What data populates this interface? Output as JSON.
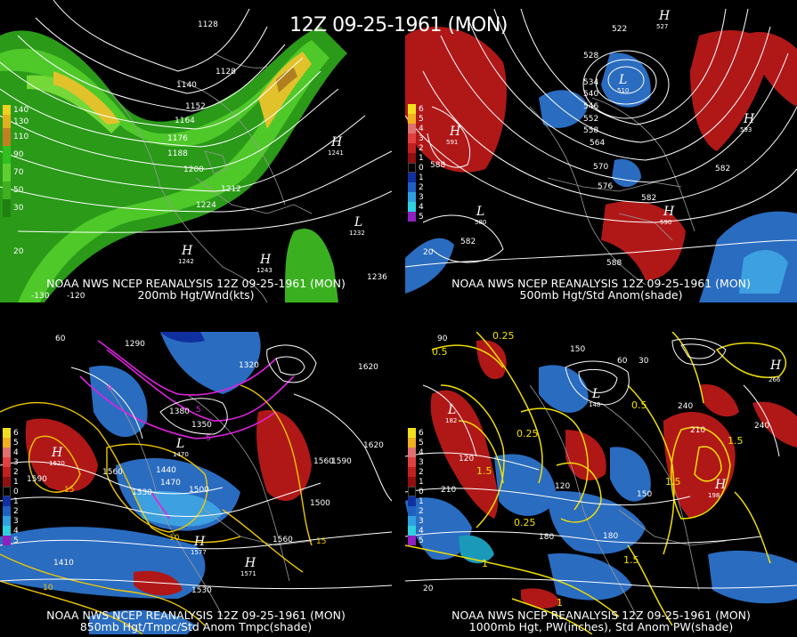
{
  "title": "12Z 09-25-1961 (MON)",
  "panels": [
    {
      "id": "p1",
      "caption_line1": "NOAA NWS NCEP REANALYSIS 12Z 09-25-1961 (MON)",
      "caption_line2": "200mb Hgt/Wnd(kts)",
      "legend": [
        {
          "label": "140",
          "color": "#f0d020"
        },
        {
          "label": "130",
          "color": "#e0b020"
        },
        {
          "label": "110",
          "color": "#c08020"
        },
        {
          "label": "90",
          "color": "#30c020"
        },
        {
          "label": "70",
          "color": "#60d030"
        },
        {
          "label": "50",
          "color": "#40b020"
        },
        {
          "label": "30",
          "color": "#208010"
        }
      ],
      "contours": [
        "1128",
        "1128",
        "1140",
        "1152",
        "1164",
        "1176",
        "1188",
        "1200",
        "1212",
        "1224",
        "1232",
        "1236",
        "1241",
        "1242",
        "1243"
      ],
      "centers": [
        {
          "letter": "H",
          "value": "1241"
        },
        {
          "letter": "L",
          "value": "1232"
        },
        {
          "letter": "H",
          "value": "1242"
        },
        {
          "letter": "H",
          "value": "1243"
        }
      ],
      "lon_labels": [
        "-130",
        "-120",
        "20"
      ]
    },
    {
      "id": "p2",
      "caption_line1": "NOAA NWS NCEP REANALYSIS 12Z 09-25-1961 (MON)",
      "caption_line2": "500mb Hgt/Std Anom(shade)",
      "legend": [
        {
          "label": "6",
          "color": "#f0e020"
        },
        {
          "label": "5",
          "color": "#f0b020"
        },
        {
          "label": "4",
          "color": "#e07070"
        },
        {
          "label": "3",
          "color": "#e04040"
        },
        {
          "label": "2",
          "color": "#c02020"
        },
        {
          "label": "1",
          "color": "#901010"
        },
        {
          "label": "0",
          "color": "#000000"
        },
        {
          "label": "1",
          "color": "#1030a0"
        },
        {
          "label": "2",
          "color": "#2060c0"
        },
        {
          "label": "3",
          "color": "#30a0e0"
        },
        {
          "label": "4",
          "color": "#30d0e0"
        },
        {
          "label": "5",
          "color": "#9020c0"
        }
      ],
      "contours": [
        "522",
        "528",
        "528",
        "534",
        "540",
        "546",
        "552",
        "558",
        "564",
        "570",
        "576",
        "582",
        "582",
        "582",
        "588",
        "588"
      ],
      "centers": [
        {
          "letter": "H",
          "value": "591"
        },
        {
          "letter": "L",
          "value": "580"
        },
        {
          "letter": "H",
          "value": "593"
        },
        {
          "letter": "H",
          "value": "590"
        },
        {
          "letter": "L",
          "value": "510"
        },
        {
          "letter": "H",
          "value": "527"
        }
      ],
      "lon_labels": [
        "20"
      ]
    },
    {
      "id": "p3",
      "caption_line1": "NOAA NWS NCEP REANALYSIS 12Z 09-25-1961 (MON)",
      "caption_line2": "850mb Hgt/Tmpc/Std Anom Tmpc(shade)",
      "legend": [
        {
          "label": "6",
          "color": "#f0e020"
        },
        {
          "label": "5",
          "color": "#f0b020"
        },
        {
          "label": "4",
          "color": "#e07070"
        },
        {
          "label": "3",
          "color": "#e04040"
        },
        {
          "label": "2",
          "color": "#c02020"
        },
        {
          "label": "1",
          "color": "#901010"
        },
        {
          "label": "0",
          "color": "#000000"
        },
        {
          "label": "1",
          "color": "#1030a0"
        },
        {
          "label": "2",
          "color": "#2060c0"
        },
        {
          "label": "3",
          "color": "#30a0e0"
        },
        {
          "label": "4",
          "color": "#30d0e0"
        },
        {
          "label": "5",
          "color": "#9020c0"
        }
      ],
      "contours": [
        "1290",
        "1320",
        "1350",
        "1380",
        "1410",
        "1440",
        "1470",
        "1500",
        "1500",
        "1530",
        "1530",
        "1560",
        "1560",
        "1560",
        "1590",
        "1590",
        "1620",
        "1620"
      ],
      "temp_labels": [
        "15",
        "15",
        "10",
        "10",
        "5",
        "0",
        "-5"
      ],
      "centers": [
        {
          "letter": "H",
          "value": "1620"
        },
        {
          "letter": "H",
          "value": "1577"
        },
        {
          "letter": "H",
          "value": "1571"
        },
        {
          "letter": "L",
          "value": "1470"
        }
      ],
      "lon_labels": [
        "60"
      ]
    },
    {
      "id": "p4",
      "caption_line1": "NOAA NWS NCEP REANALYSIS 12Z 09-25-1961 (MON)",
      "caption_line2": "1000mb Hgt, PW(inches), Std Anom PW(shade)",
      "legend": [
        {
          "label": "6",
          "color": "#f0e020"
        },
        {
          "label": "5",
          "color": "#f0b020"
        },
        {
          "label": "4",
          "color": "#e07070"
        },
        {
          "label": "3",
          "color": "#e04040"
        },
        {
          "label": "2",
          "color": "#c02020"
        },
        {
          "label": "1",
          "color": "#901010"
        },
        {
          "label": "0",
          "color": "#000000"
        },
        {
          "label": "1",
          "color": "#1030a0"
        },
        {
          "label": "2",
          "color": "#2060c0"
        },
        {
          "label": "3",
          "color": "#30a0e0"
        },
        {
          "label": "4",
          "color": "#30d0e0"
        },
        {
          "label": "5",
          "color": "#9020c0"
        }
      ],
      "contours": [
        "90",
        "120",
        "120",
        "150",
        "150",
        "180",
        "180",
        "210",
        "210",
        "240",
        "240",
        "60",
        "30"
      ],
      "pw_labels": [
        "0.25",
        "0.25",
        "0.25",
        "0.5",
        "0.5",
        "1",
        "1",
        "1.5",
        "1.5",
        "1.5",
        "1.5"
      ],
      "centers": [
        {
          "letter": "H",
          "value": "198"
        },
        {
          "letter": "L",
          "value": "182"
        },
        {
          "letter": "H",
          "value": "266"
        },
        {
          "letter": "L",
          "value": "148"
        }
      ],
      "lon_labels": [
        "20"
      ]
    }
  ],
  "colors": {
    "background": "#000000",
    "contour_white": "#ffffff",
    "contour_yellow": "#f0e000",
    "temp_magenta": "#e020e0",
    "coast_gray": "#9a9a9a"
  }
}
